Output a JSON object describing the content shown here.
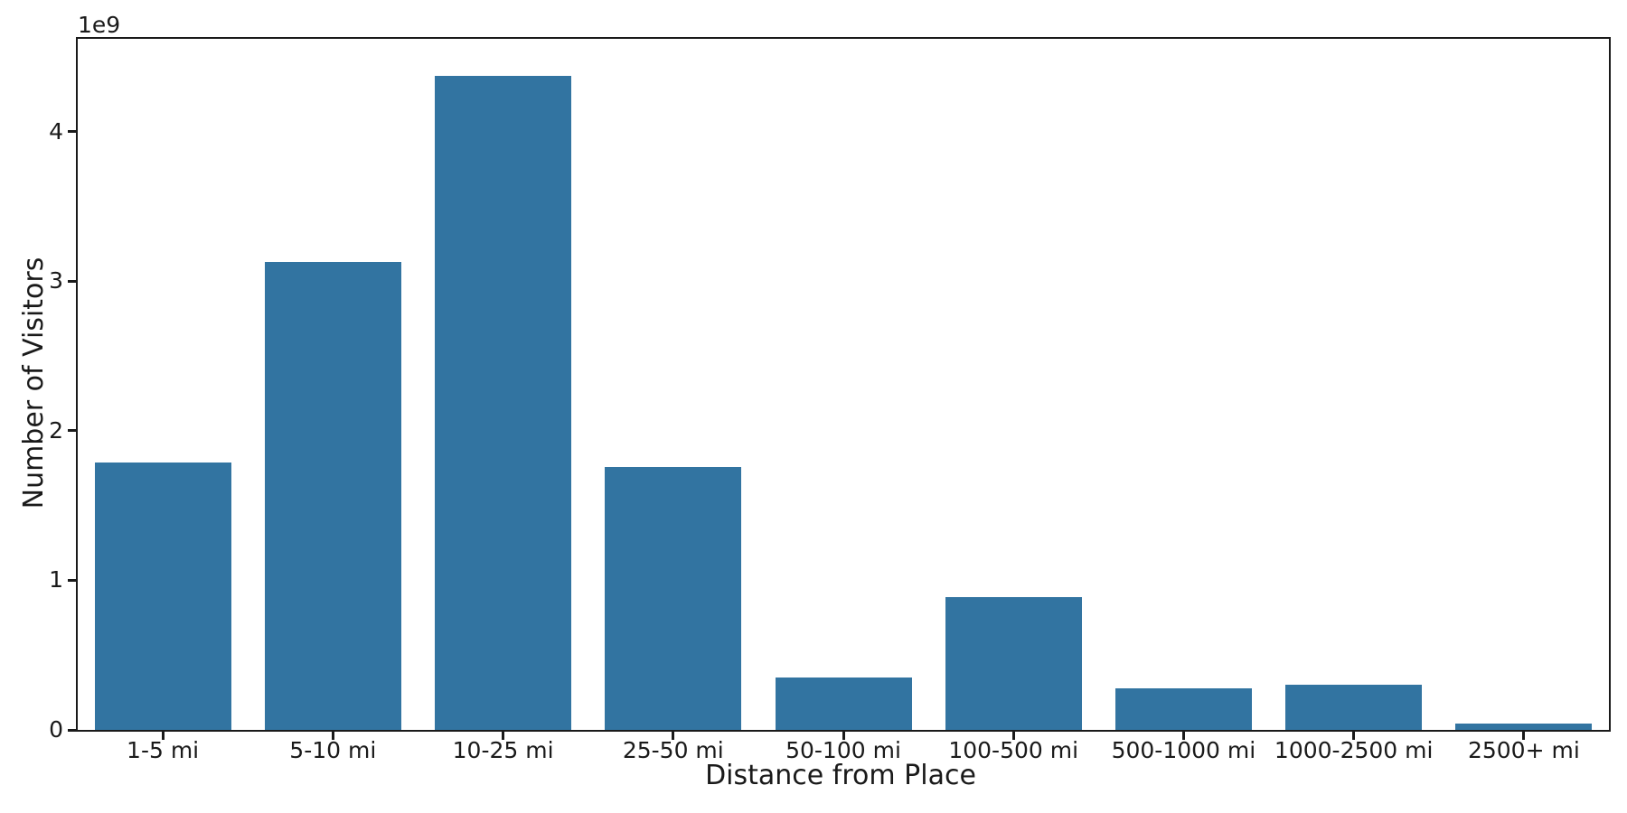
{
  "chart_data": {
    "type": "bar",
    "title": "",
    "xlabel": "Distance from Place",
    "ylabel": "Number of Visitors",
    "offset_text": "1e9",
    "categories": [
      "1-5 mi",
      "5-10 mi",
      "10-25 mi",
      "25-50 mi",
      "50-100 mi",
      "100-500 mi",
      "500-1000 mi",
      "1000-2500 mi",
      "2500+ mi"
    ],
    "values": [
      1790000000,
      3130000000,
      4370000000,
      1760000000,
      350000000,
      890000000,
      280000000,
      300000000,
      40000000
    ],
    "ylim": [
      0,
      4620000000
    ],
    "yticks": [
      0,
      1000000000,
      2000000000,
      3000000000,
      4000000000
    ],
    "ytick_labels": [
      "0",
      "1",
      "2",
      "3",
      "4"
    ],
    "bar_color": "#3274a1",
    "axis_color": "#1a1a1a",
    "background_color": "#ffffff",
    "grid": false,
    "legend": false
  }
}
